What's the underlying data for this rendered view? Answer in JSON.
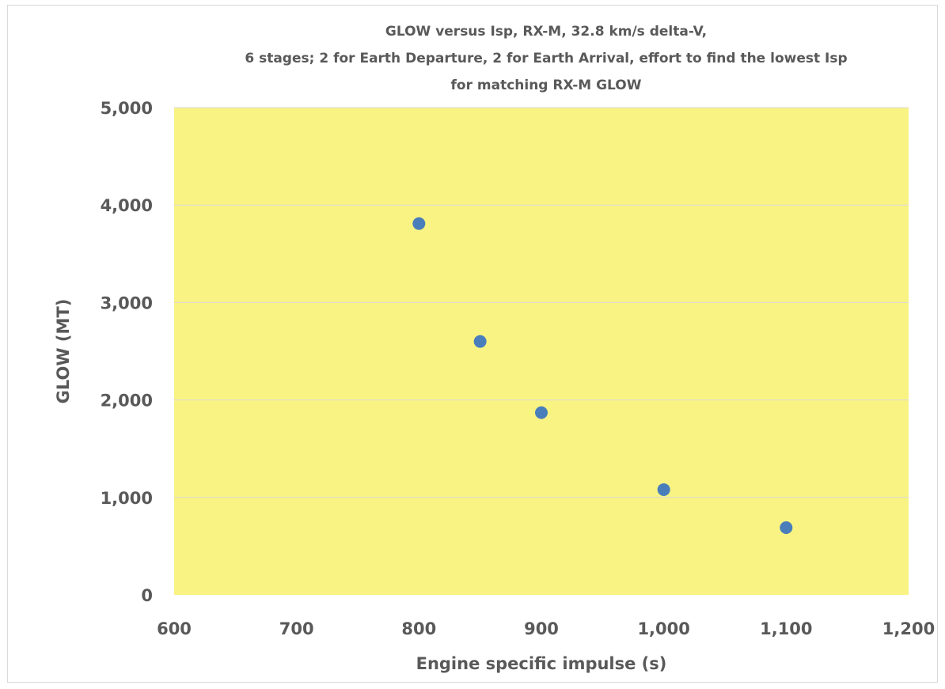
{
  "chart_data": {
    "type": "scatter",
    "title_lines": [
      "GLOW versus Isp, RX-M, 32.8 km/s delta-V,",
      "6 stages; 2 for Earth Departure,  2 for Earth Arrival, effort to find the  lowest Isp",
      "for matching RX-M GLOW"
    ],
    "xlabel": "Engine specific impulse (s)",
    "ylabel": "GLOW (MT)",
    "xlim": [
      600,
      1200
    ],
    "ylim": [
      0,
      5000
    ],
    "x_ticks": [
      600,
      700,
      800,
      900,
      1000,
      1100,
      1200
    ],
    "y_ticks": [
      0,
      1000,
      2000,
      3000,
      4000,
      5000
    ],
    "x_tick_labels": [
      "600",
      "700",
      "800",
      "900",
      "1,000",
      "1,100",
      "1,200"
    ],
    "y_tick_labels": [
      "0",
      "1,000",
      "2,000",
      "3,000",
      "4,000",
      "5,000"
    ],
    "grid": "horizontal",
    "legend": "none",
    "colors": {
      "plot_background": "#f9f383",
      "marker": "#4a7ebb",
      "gridline": "#d9d9d9",
      "text": "#595959"
    },
    "series": [
      {
        "points": [
          {
            "x": 800,
            "y": 3810
          },
          {
            "x": 850,
            "y": 2600
          },
          {
            "x": 900,
            "y": 1870
          },
          {
            "x": 1000,
            "y": 1080
          },
          {
            "x": 1100,
            "y": 690
          }
        ]
      }
    ]
  }
}
